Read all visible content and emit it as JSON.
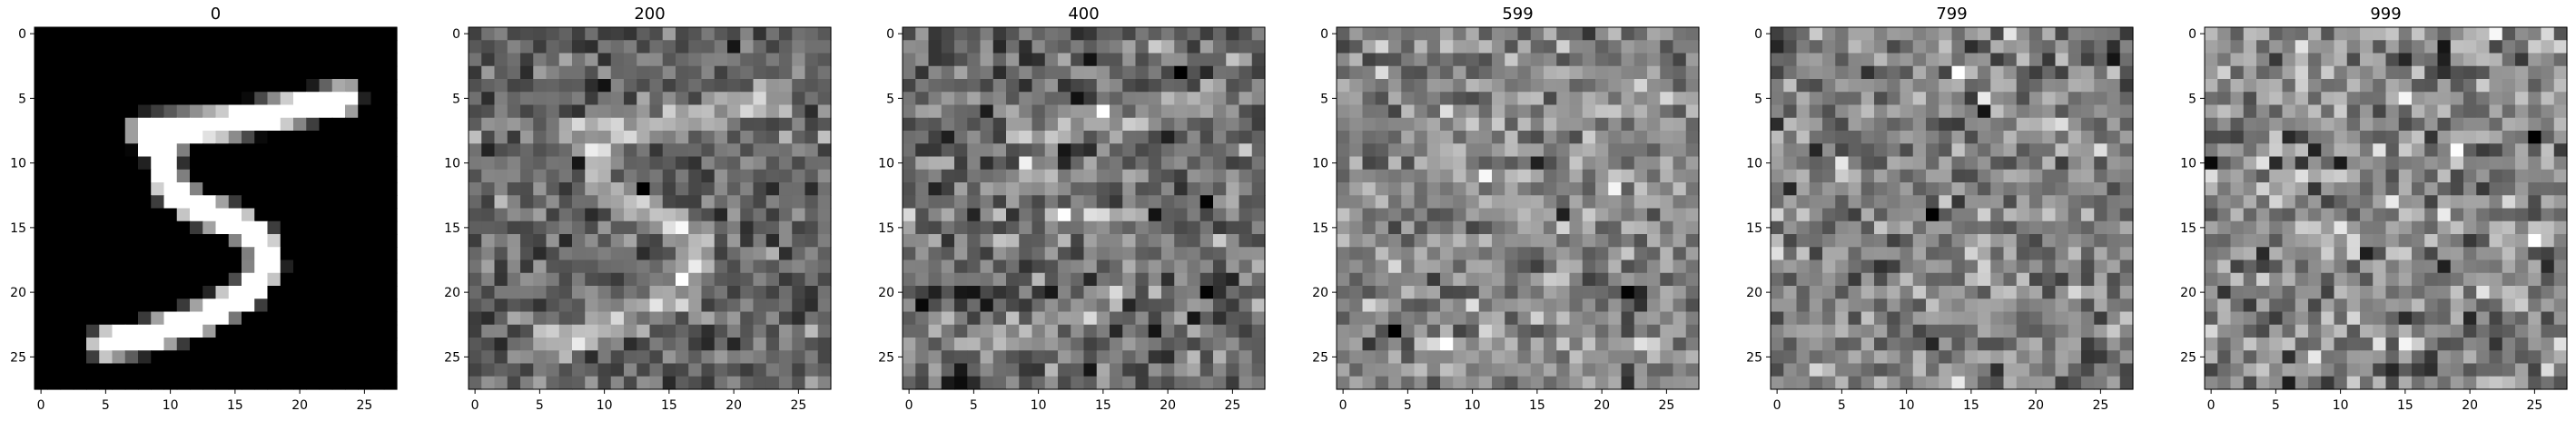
{
  "chart_data": [
    {
      "type": "heatmap",
      "title": "0",
      "colormap": "gray",
      "x_ticks": [
        "0",
        "5",
        "10",
        "15",
        "20",
        "25"
      ],
      "y_ticks": [
        "0",
        "5",
        "10",
        "15",
        "20",
        "25"
      ],
      "grid_size": [
        28,
        28
      ],
      "noise_level": 0.0
    },
    {
      "type": "heatmap",
      "title": "200",
      "colormap": "gray",
      "x_ticks": [
        "0",
        "5",
        "10",
        "15",
        "20",
        "25"
      ],
      "y_ticks": [
        "0",
        "5",
        "10",
        "15",
        "20",
        "25"
      ],
      "grid_size": [
        28,
        28
      ],
      "noise_level": 0.55
    },
    {
      "type": "heatmap",
      "title": "400",
      "colormap": "gray",
      "x_ticks": [
        "0",
        "5",
        "10",
        "15",
        "20",
        "25"
      ],
      "y_ticks": [
        "0",
        "5",
        "10",
        "15",
        "20",
        "25"
      ],
      "grid_size": [
        28,
        28
      ],
      "noise_level": 0.85
    },
    {
      "type": "heatmap",
      "title": "599",
      "colormap": "gray",
      "x_ticks": [
        "0",
        "5",
        "10",
        "15",
        "20",
        "25"
      ],
      "y_ticks": [
        "0",
        "5",
        "10",
        "15",
        "20",
        "25"
      ],
      "grid_size": [
        28,
        28
      ],
      "noise_level": 0.95
    },
    {
      "type": "heatmap",
      "title": "799",
      "colormap": "gray",
      "x_ticks": [
        "0",
        "5",
        "10",
        "15",
        "20",
        "25"
      ],
      "y_ticks": [
        "0",
        "5",
        "10",
        "15",
        "20",
        "25"
      ],
      "grid_size": [
        28,
        28
      ],
      "noise_level": 1.0
    },
    {
      "type": "heatmap",
      "title": "999",
      "colormap": "gray",
      "x_ticks": [
        "0",
        "5",
        "10",
        "15",
        "20",
        "25"
      ],
      "y_ticks": [
        "0",
        "5",
        "10",
        "15",
        "20",
        "25"
      ],
      "grid_size": [
        28,
        28
      ],
      "noise_level": 1.0
    }
  ]
}
